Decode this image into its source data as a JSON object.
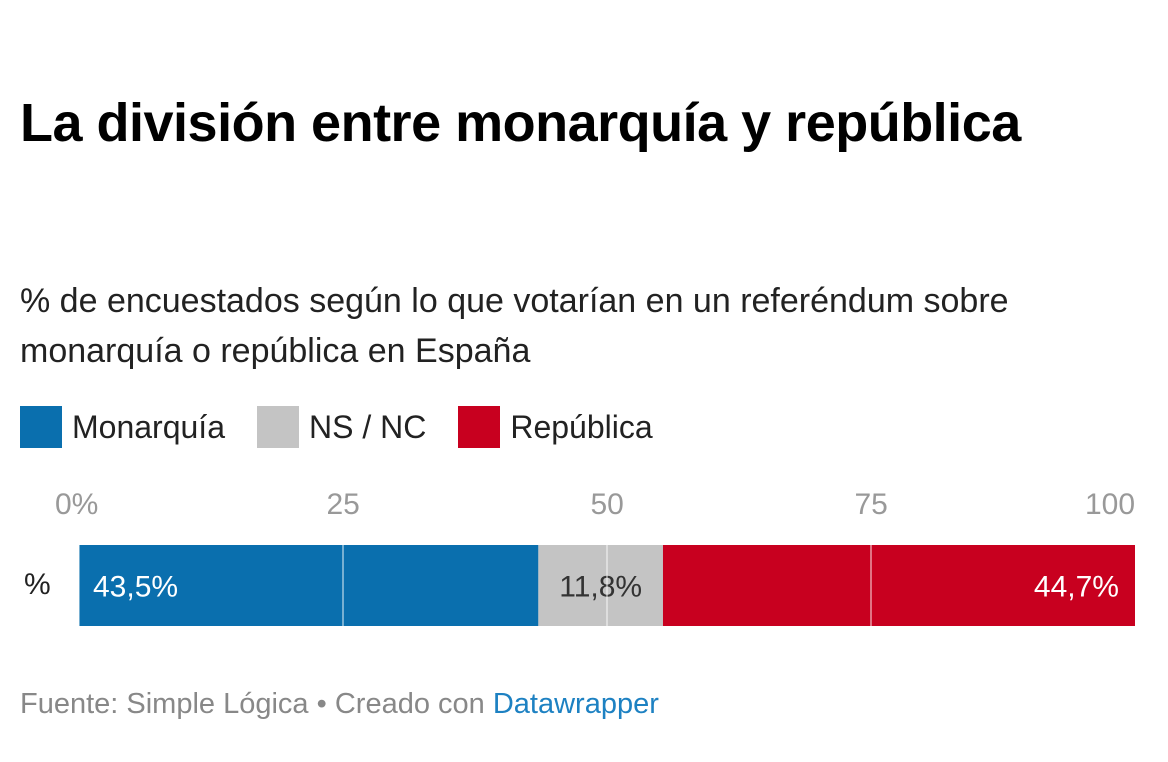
{
  "title": "La división entre monarquía y república",
  "subtitle": "% de encuestados según lo que votarían en un referéndum sobre monarquía o república en España",
  "footer": {
    "source": "Fuente: Simple Lógica",
    "separator": " • ",
    "created": "Creado con ",
    "link": "Datawrapper"
  },
  "chart_data": {
    "type": "bar",
    "orientation": "horizontal-stacked",
    "categories": [
      "%"
    ],
    "series": [
      {
        "name": "Monarquía",
        "values": [
          43.5
        ],
        "label": "43,5%",
        "color": "#0a6fae"
      },
      {
        "name": "NS / NC",
        "values": [
          11.8
        ],
        "label": "11,8%",
        "color": "#c4c4c4"
      },
      {
        "name": "República",
        "values": [
          44.7
        ],
        "label": "44,7%",
        "color": "#c8001f"
      }
    ],
    "xlim": [
      0,
      100
    ],
    "xticks": [
      0,
      25,
      50,
      75,
      100
    ],
    "xtick_labels": [
      "0%",
      "25",
      "50",
      "75",
      "100"
    ],
    "grid": true,
    "legend_placement": "top-left"
  }
}
